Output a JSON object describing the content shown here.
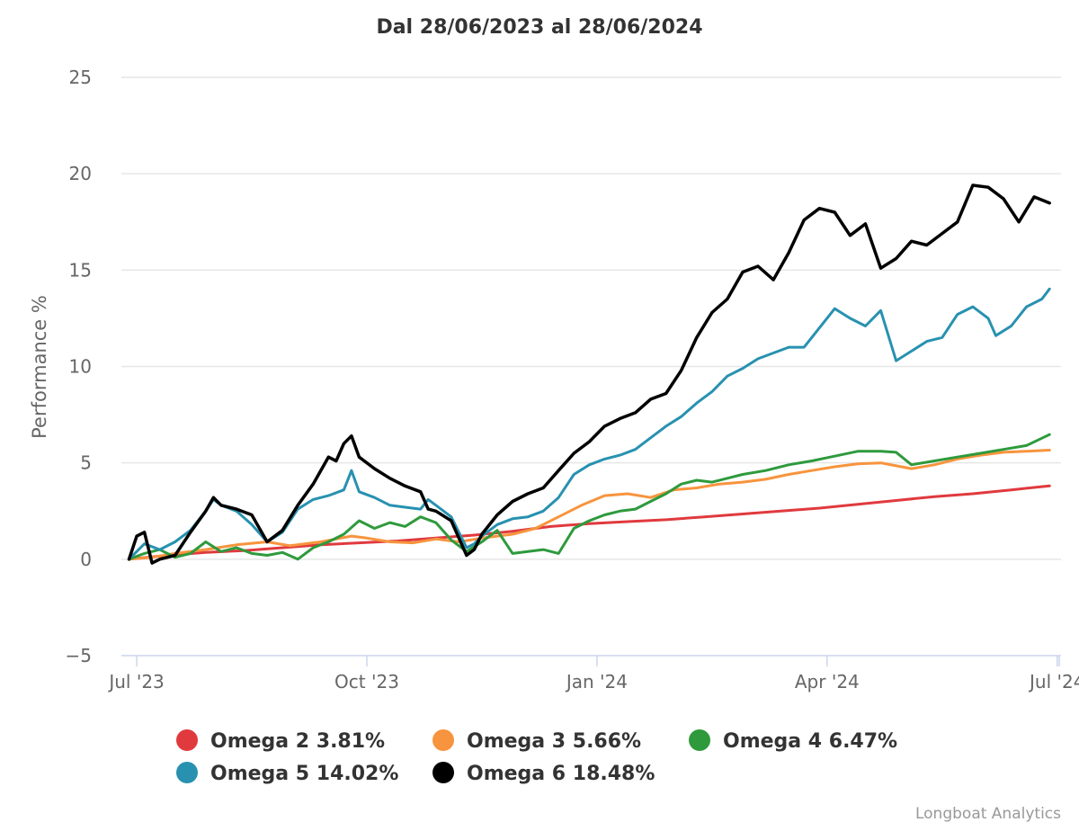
{
  "chart_data": {
    "type": "line",
    "title": "Dal 28/06/2023 al 28/06/2024",
    "ylabel": "Performance %",
    "xlabel": "",
    "ylim": [
      -5,
      25
    ],
    "y_ticks": [
      -5,
      0,
      5,
      10,
      15,
      20,
      25
    ],
    "x_ticks": [
      {
        "label": "Jul '23",
        "t": 0.1
      },
      {
        "label": "Oct '23",
        "t": 3.1
      },
      {
        "label": "Jan '24",
        "t": 6.1
      },
      {
        "label": "Apr '24",
        "t": 9.1
      },
      {
        "label": "Jul '24",
        "t": 12.1
      }
    ],
    "xlim": [
      -0.1,
      12.15
    ],
    "grid": true,
    "legend_position": "bottom",
    "credit": "Longboat Analytics",
    "series": [
      {
        "name": "Omega 2",
        "legend": "Omega 2 3.81%",
        "color": "#e03a3e",
        "points": [
          [
            0,
            0.0
          ],
          [
            0.5,
            0.2
          ],
          [
            1,
            0.35
          ],
          [
            1.5,
            0.45
          ],
          [
            2,
            0.6
          ],
          [
            2.5,
            0.75
          ],
          [
            3,
            0.85
          ],
          [
            3.5,
            0.95
          ],
          [
            4,
            1.1
          ],
          [
            4.5,
            1.25
          ],
          [
            5,
            1.45
          ],
          [
            5.5,
            1.7
          ],
          [
            6,
            1.85
          ],
          [
            6.5,
            1.95
          ],
          [
            7,
            2.05
          ],
          [
            7.5,
            2.2
          ],
          [
            8,
            2.35
          ],
          [
            8.5,
            2.5
          ],
          [
            9,
            2.65
          ],
          [
            9.5,
            2.85
          ],
          [
            10,
            3.05
          ],
          [
            10.5,
            3.25
          ],
          [
            11,
            3.4
          ],
          [
            11.5,
            3.6
          ],
          [
            12,
            3.81
          ]
        ]
      },
      {
        "name": "Omega 3",
        "legend": "Omega 3 5.66%",
        "color": "#f7943d",
        "points": [
          [
            0,
            0.0
          ],
          [
            0.3,
            0.1
          ],
          [
            0.6,
            0.3
          ],
          [
            1,
            0.5
          ],
          [
            1.4,
            0.75
          ],
          [
            1.8,
            0.9
          ],
          [
            2.1,
            0.7
          ],
          [
            2.5,
            0.9
          ],
          [
            2.9,
            1.2
          ],
          [
            3.1,
            1.1
          ],
          [
            3.4,
            0.9
          ],
          [
            3.7,
            0.85
          ],
          [
            4,
            1.05
          ],
          [
            4.3,
            0.9
          ],
          [
            4.6,
            1.1
          ],
          [
            5,
            1.3
          ],
          [
            5.3,
            1.6
          ],
          [
            5.6,
            2.2
          ],
          [
            5.9,
            2.8
          ],
          [
            6.2,
            3.3
          ],
          [
            6.5,
            3.4
          ],
          [
            6.8,
            3.2
          ],
          [
            7.1,
            3.6
          ],
          [
            7.4,
            3.7
          ],
          [
            7.7,
            3.9
          ],
          [
            8,
            4.0
          ],
          [
            8.3,
            4.15
          ],
          [
            8.6,
            4.4
          ],
          [
            8.9,
            4.6
          ],
          [
            9.2,
            4.8
          ],
          [
            9.5,
            4.95
          ],
          [
            9.8,
            5.0
          ],
          [
            10,
            4.85
          ],
          [
            10.2,
            4.7
          ],
          [
            10.5,
            4.9
          ],
          [
            10.8,
            5.2
          ],
          [
            11.1,
            5.4
          ],
          [
            11.4,
            5.55
          ],
          [
            11.7,
            5.6
          ],
          [
            12,
            5.66
          ]
        ]
      },
      {
        "name": "Omega 4",
        "legend": "Omega 4 6.47%",
        "color": "#2e9a3c",
        "points": [
          [
            0,
            0.0
          ],
          [
            0.2,
            0.3
          ],
          [
            0.4,
            0.5
          ],
          [
            0.6,
            0.1
          ],
          [
            0.8,
            0.3
          ],
          [
            1,
            0.9
          ],
          [
            1.2,
            0.4
          ],
          [
            1.4,
            0.6
          ],
          [
            1.6,
            0.3
          ],
          [
            1.8,
            0.2
          ],
          [
            2,
            0.35
          ],
          [
            2.2,
            0.0
          ],
          [
            2.4,
            0.6
          ],
          [
            2.6,
            0.9
          ],
          [
            2.8,
            1.3
          ],
          [
            3,
            2.0
          ],
          [
            3.2,
            1.6
          ],
          [
            3.4,
            1.9
          ],
          [
            3.6,
            1.7
          ],
          [
            3.8,
            2.2
          ],
          [
            4.0,
            1.9
          ],
          [
            4.2,
            1.0
          ],
          [
            4.4,
            0.4
          ],
          [
            4.6,
            0.9
          ],
          [
            4.8,
            1.5
          ],
          [
            5.0,
            0.3
          ],
          [
            5.2,
            0.4
          ],
          [
            5.4,
            0.5
          ],
          [
            5.6,
            0.3
          ],
          [
            5.8,
            1.6
          ],
          [
            6.0,
            2.0
          ],
          [
            6.2,
            2.3
          ],
          [
            6.4,
            2.5
          ],
          [
            6.6,
            2.6
          ],
          [
            6.8,
            3.0
          ],
          [
            7.0,
            3.4
          ],
          [
            7.2,
            3.9
          ],
          [
            7.4,
            4.1
          ],
          [
            7.6,
            4.0
          ],
          [
            7.8,
            4.2
          ],
          [
            8.0,
            4.4
          ],
          [
            8.3,
            4.6
          ],
          [
            8.6,
            4.9
          ],
          [
            8.9,
            5.1
          ],
          [
            9.2,
            5.35
          ],
          [
            9.5,
            5.6
          ],
          [
            9.8,
            5.6
          ],
          [
            10.0,
            5.55
          ],
          [
            10.2,
            4.9
          ],
          [
            10.5,
            5.1
          ],
          [
            10.8,
            5.3
          ],
          [
            11.1,
            5.5
          ],
          [
            11.4,
            5.7
          ],
          [
            11.7,
            5.9
          ],
          [
            12,
            6.47
          ]
        ]
      },
      {
        "name": "Omega 5",
        "legend": "Omega 5 14.02%",
        "color": "#2891b0",
        "points": [
          [
            0,
            0.0
          ],
          [
            0.2,
            0.8
          ],
          [
            0.4,
            0.5
          ],
          [
            0.6,
            0.9
          ],
          [
            0.8,
            1.5
          ],
          [
            1.0,
            2.5
          ],
          [
            1.1,
            3.1
          ],
          [
            1.2,
            2.8
          ],
          [
            1.4,
            2.5
          ],
          [
            1.6,
            1.8
          ],
          [
            1.8,
            0.9
          ],
          [
            2.0,
            1.4
          ],
          [
            2.2,
            2.6
          ],
          [
            2.4,
            3.1
          ],
          [
            2.6,
            3.3
          ],
          [
            2.8,
            3.6
          ],
          [
            2.9,
            4.6
          ],
          [
            3.0,
            3.5
          ],
          [
            3.2,
            3.2
          ],
          [
            3.4,
            2.8
          ],
          [
            3.6,
            2.7
          ],
          [
            3.8,
            2.6
          ],
          [
            3.9,
            3.1
          ],
          [
            4.0,
            2.8
          ],
          [
            4.2,
            2.2
          ],
          [
            4.4,
            0.6
          ],
          [
            4.5,
            0.8
          ],
          [
            4.6,
            1.2
          ],
          [
            4.8,
            1.8
          ],
          [
            5.0,
            2.1
          ],
          [
            5.2,
            2.2
          ],
          [
            5.4,
            2.5
          ],
          [
            5.6,
            3.2
          ],
          [
            5.8,
            4.4
          ],
          [
            6.0,
            4.9
          ],
          [
            6.2,
            5.2
          ],
          [
            6.4,
            5.4
          ],
          [
            6.6,
            5.7
          ],
          [
            6.8,
            6.3
          ],
          [
            7.0,
            6.9
          ],
          [
            7.2,
            7.4
          ],
          [
            7.4,
            8.1
          ],
          [
            7.6,
            8.7
          ],
          [
            7.8,
            9.5
          ],
          [
            8.0,
            9.9
          ],
          [
            8.2,
            10.4
          ],
          [
            8.4,
            10.7
          ],
          [
            8.6,
            11.0
          ],
          [
            8.8,
            11.0
          ],
          [
            9.0,
            12.0
          ],
          [
            9.2,
            13.0
          ],
          [
            9.4,
            12.5
          ],
          [
            9.6,
            12.1
          ],
          [
            9.8,
            12.9
          ],
          [
            10.0,
            10.3
          ],
          [
            10.2,
            10.8
          ],
          [
            10.4,
            11.3
          ],
          [
            10.6,
            11.5
          ],
          [
            10.8,
            12.7
          ],
          [
            11.0,
            13.1
          ],
          [
            11.2,
            12.5
          ],
          [
            11.3,
            11.6
          ],
          [
            11.5,
            12.1
          ],
          [
            11.7,
            13.1
          ],
          [
            11.9,
            13.5
          ],
          [
            12,
            14.02
          ]
        ]
      },
      {
        "name": "Omega 6",
        "legend": "Omega 6 18.48%",
        "color": "#000000",
        "points": [
          [
            0,
            0.0
          ],
          [
            0.1,
            1.2
          ],
          [
            0.2,
            1.4
          ],
          [
            0.3,
            -0.2
          ],
          [
            0.4,
            0.0
          ],
          [
            0.6,
            0.2
          ],
          [
            0.8,
            1.4
          ],
          [
            1.0,
            2.5
          ],
          [
            1.1,
            3.2
          ],
          [
            1.2,
            2.8
          ],
          [
            1.4,
            2.6
          ],
          [
            1.6,
            2.3
          ],
          [
            1.8,
            0.9
          ],
          [
            2.0,
            1.5
          ],
          [
            2.2,
            2.8
          ],
          [
            2.4,
            3.9
          ],
          [
            2.6,
            5.3
          ],
          [
            2.7,
            5.1
          ],
          [
            2.8,
            6.0
          ],
          [
            2.9,
            6.4
          ],
          [
            3.0,
            5.3
          ],
          [
            3.2,
            4.7
          ],
          [
            3.4,
            4.2
          ],
          [
            3.6,
            3.8
          ],
          [
            3.8,
            3.5
          ],
          [
            3.9,
            2.6
          ],
          [
            4.0,
            2.5
          ],
          [
            4.2,
            2.0
          ],
          [
            4.4,
            0.2
          ],
          [
            4.5,
            0.5
          ],
          [
            4.6,
            1.3
          ],
          [
            4.8,
            2.3
          ],
          [
            5.0,
            3.0
          ],
          [
            5.2,
            3.4
          ],
          [
            5.4,
            3.7
          ],
          [
            5.6,
            4.6
          ],
          [
            5.8,
            5.5
          ],
          [
            6.0,
            6.1
          ],
          [
            6.2,
            6.9
          ],
          [
            6.4,
            7.3
          ],
          [
            6.6,
            7.6
          ],
          [
            6.8,
            8.3
          ],
          [
            7.0,
            8.6
          ],
          [
            7.2,
            9.8
          ],
          [
            7.4,
            11.5
          ],
          [
            7.6,
            12.8
          ],
          [
            7.8,
            13.5
          ],
          [
            8.0,
            14.9
          ],
          [
            8.2,
            15.2
          ],
          [
            8.4,
            14.5
          ],
          [
            8.6,
            15.9
          ],
          [
            8.8,
            17.6
          ],
          [
            9.0,
            18.2
          ],
          [
            9.2,
            18.0
          ],
          [
            9.4,
            16.8
          ],
          [
            9.6,
            17.4
          ],
          [
            9.8,
            15.1
          ],
          [
            10.0,
            15.6
          ],
          [
            10.2,
            16.5
          ],
          [
            10.4,
            16.3
          ],
          [
            10.6,
            16.9
          ],
          [
            10.8,
            17.5
          ],
          [
            11.0,
            19.4
          ],
          [
            11.2,
            19.3
          ],
          [
            11.4,
            18.7
          ],
          [
            11.6,
            17.5
          ],
          [
            11.8,
            18.8
          ],
          [
            12,
            18.48
          ]
        ]
      }
    ]
  }
}
